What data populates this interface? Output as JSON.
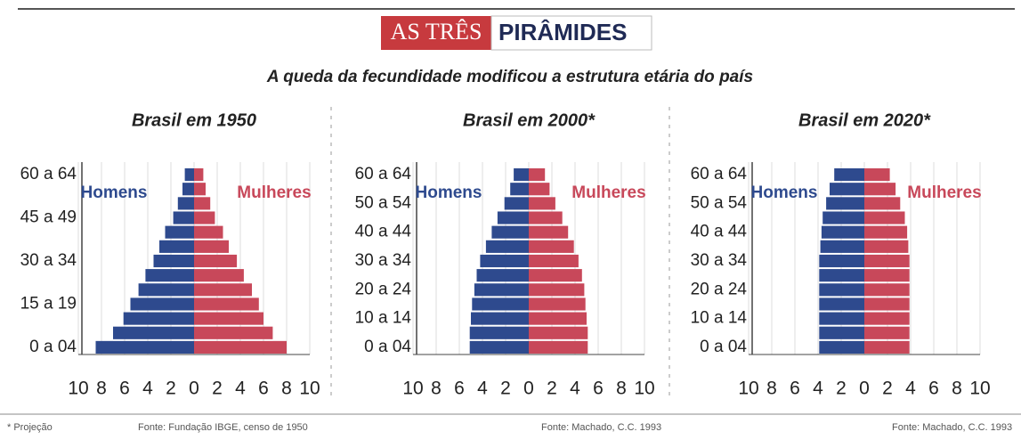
{
  "header": {
    "title_highlight": "AS TRÊS",
    "title_rest": "PIRÂMIDES",
    "subtitle": "A queda da fecundidade modificou a estrutura etária do país",
    "note": "* Projeção"
  },
  "chart_data": [
    {
      "type": "pyramid",
      "title": "Brasil em 1950",
      "source": "Fonte: Fundação IBGE, censo de 1950",
      "categories": [
        "0 a 04",
        null,
        null,
        "15 a 19",
        null,
        null,
        "30 a 34",
        null,
        null,
        "45 a 49",
        null,
        null,
        "60 a 64"
      ],
      "series": [
        {
          "name": "Homens",
          "color": "#2e4a8e",
          "side": "left",
          "values": [
            8.5,
            7,
            6.1,
            5.5,
            4.8,
            4.2,
            3.5,
            3,
            2.5,
            1.8,
            1.4,
            1,
            0.8
          ]
        },
        {
          "name": "Mulheres",
          "color": "#c8485a",
          "side": "right",
          "values": [
            8,
            6.8,
            6,
            5.6,
            5,
            4.3,
            3.7,
            3,
            2.5,
            1.8,
            1.4,
            1,
            0.8
          ]
        }
      ],
      "xlim": [
        0,
        10
      ],
      "xticks": [
        0,
        2,
        4,
        6,
        8,
        10
      ],
      "grid": true
    },
    {
      "type": "pyramid",
      "title": "Brasil em 2000*",
      "source": "Fonte: Machado, C.C. 1993",
      "categories": [
        "0 a 04",
        null,
        "10 a 14",
        null,
        "20 a 24",
        null,
        "30 a 34",
        null,
        "40 a 44",
        null,
        "50 a 54",
        null,
        "60 a 64"
      ],
      "series": [
        {
          "name": "Homens",
          "color": "#2e4a8e",
          "side": "left",
          "values": [
            5.1,
            5.1,
            5,
            4.9,
            4.7,
            4.5,
            4.2,
            3.7,
            3.2,
            2.7,
            2.1,
            1.6,
            1.3
          ]
        },
        {
          "name": "Mulheres",
          "color": "#c8485a",
          "side": "right",
          "values": [
            5.1,
            5.1,
            5,
            4.9,
            4.8,
            4.6,
            4.3,
            3.9,
            3.4,
            2.9,
            2.3,
            1.8,
            1.4
          ]
        }
      ],
      "xlim": [
        0,
        10
      ],
      "xticks": [
        0,
        2,
        4,
        6,
        8,
        10
      ],
      "grid": true
    },
    {
      "type": "pyramid",
      "title": "Brasil em 2020*",
      "source": "Fonte: Machado, C.C. 1993",
      "categories": [
        "0 a 04",
        null,
        "10 a 14",
        null,
        "20 a 24",
        null,
        "30 a 34",
        null,
        "40 a 44",
        null,
        "50 a 54",
        null,
        "60 a 64"
      ],
      "series": [
        {
          "name": "Homens",
          "color": "#2e4a8e",
          "side": "left",
          "values": [
            3.9,
            3.9,
            3.9,
            3.9,
            3.9,
            3.9,
            3.9,
            3.8,
            3.7,
            3.6,
            3.3,
            3,
            2.6
          ]
        },
        {
          "name": "Mulheres",
          "color": "#c8485a",
          "side": "right",
          "values": [
            3.9,
            3.9,
            3.9,
            3.9,
            3.9,
            3.9,
            3.9,
            3.8,
            3.7,
            3.5,
            3.1,
            2.7,
            2.2
          ]
        }
      ],
      "xlim": [
        0,
        10
      ],
      "xticks": [
        0,
        2,
        4,
        6,
        8,
        10
      ],
      "grid": true
    }
  ]
}
